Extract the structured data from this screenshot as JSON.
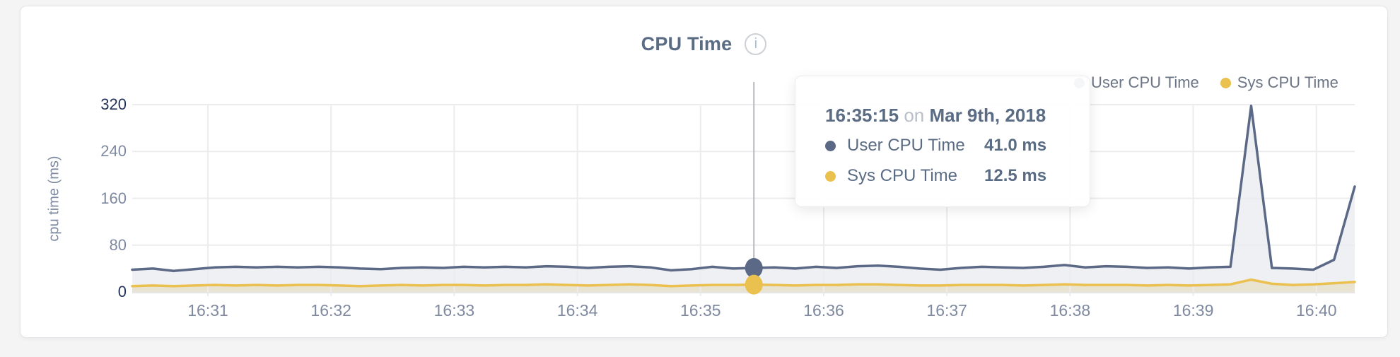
{
  "header": {
    "title": "CPU Time",
    "info_icon_glyph": "i"
  },
  "legend": [
    {
      "label": "User CPU Time",
      "color": "#5b6986"
    },
    {
      "label": "Sys CPU Time",
      "color": "#eac14e"
    }
  ],
  "tooltip": {
    "time": "16:35:15",
    "conjunction": "on",
    "date": "Mar 9th, 2018",
    "rows": [
      {
        "label": "User CPU Time",
        "value": "41.0 ms",
        "color": "#5b6986"
      },
      {
        "label": "Sys CPU Time",
        "value": "12.5 ms",
        "color": "#eac14e"
      }
    ]
  },
  "colors": {
    "title": "#5a6b84",
    "legend_text": "#6b7585",
    "tick": "#7e89a0",
    "tick_strong": "#24335a",
    "axis_label": "#7d89a0",
    "grid": "#ececee",
    "axis_line": "#e6e6e8",
    "crosshair": "#b6b9bf",
    "user_line": "#5b6986",
    "user_fill": "rgba(99,112,141,0.10)",
    "sys_line": "#eac14e",
    "sys_fill": "rgba(212,181,94,0.22)",
    "tooltip_text": "#5a6b84",
    "tooltip_muted": "#b8bfc9"
  },
  "chart_data": {
    "type": "area",
    "title": "CPU Time",
    "xlabel": "",
    "ylabel": "cpu time (ms)",
    "ylim": [
      0,
      320
    ],
    "y_ticks": [
      320,
      240,
      160,
      80,
      0
    ],
    "y_ticks_strong": [
      320,
      0
    ],
    "x_tick_labels": [
      "16:31",
      "16:32",
      "16:33",
      "16:34",
      "16:35",
      "16:36",
      "16:37",
      "16:38",
      "16:39",
      "16:40"
    ],
    "x_range": [
      "16:30:23",
      "16:40:16"
    ],
    "sample_interval_seconds": 10,
    "grid": true,
    "legend_position": "top-right",
    "highlight_index": 30,
    "highlight": {
      "time": "16:35:15",
      "date": "Mar 9th, 2018",
      "user_ms": 41.0,
      "sys_ms": 12.5
    },
    "series": [
      {
        "name": "User CPU Time",
        "color": "#5b6986",
        "values": [
          38,
          40,
          36,
          39,
          42,
          43,
          42,
          43,
          42,
          43,
          42,
          40,
          39,
          41,
          42,
          41,
          43,
          42,
          43,
          42,
          44,
          43,
          41,
          43,
          44,
          42,
          37,
          39,
          43,
          40,
          41,
          42,
          40,
          43,
          41,
          44,
          45,
          43,
          40,
          38,
          41,
          43,
          42,
          41,
          43,
          46,
          42,
          44,
          43,
          41,
          42,
          40,
          42,
          43,
          318,
          41,
          40,
          38,
          55,
          180
        ]
      },
      {
        "name": "Sys CPU Time",
        "color": "#eac14e",
        "values": [
          10,
          11,
          10,
          11,
          12,
          11,
          12,
          11,
          12,
          12,
          11,
          10,
          11,
          12,
          11,
          12,
          12,
          11,
          12,
          12,
          13,
          12,
          11,
          12,
          13,
          12,
          10,
          11,
          12,
          12,
          12.5,
          12,
          11,
          12,
          12,
          13,
          13,
          12,
          11,
          11,
          12,
          12,
          12,
          11,
          12,
          13,
          12,
          12,
          12,
          11,
          12,
          11,
          12,
          13,
          21,
          14,
          12,
          13,
          15,
          17
        ]
      }
    ]
  }
}
